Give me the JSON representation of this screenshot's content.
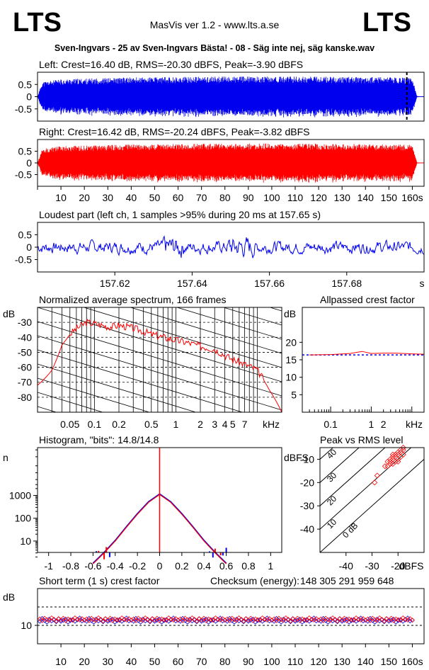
{
  "header": {
    "logo_left": "LTS",
    "logo_right": "LTS",
    "app_title": "MasVis ver 1.2 - www.lts.a.se",
    "file_title": "Sven-Ingvars - 25 av Sven-Ingvars Bästa! - 08 - Säg inte nej, säg kanske.wav"
  },
  "colors": {
    "left": "#0000ee",
    "right": "#ff0000",
    "grid": "#000000",
    "background": "#ffffff"
  },
  "chart_data": [
    {
      "id": "left_waveform",
      "type": "area",
      "title": "Left: Crest=16.40 dB, RMS=-20.30 dBFS, Peak=-3.90 dBFS",
      "xlim": [
        0,
        165
      ],
      "ylim": [
        -1,
        1
      ],
      "yticks": [
        "0.5",
        "0",
        "-0.5"
      ],
      "marker_x": 157.65,
      "envelope": {
        "x": [
          0,
          2,
          10,
          40,
          80,
          120,
          150,
          160,
          162,
          165
        ],
        "amplitude": [
          0.0,
          0.55,
          0.65,
          0.72,
          0.75,
          0.75,
          0.72,
          0.7,
          0.02,
          0.0
        ]
      }
    },
    {
      "id": "right_waveform",
      "type": "area",
      "title": "Right: Crest=16.42 dB, RMS=-20.24 dBFS, Peak=-3.82 dBFS",
      "xlim": [
        0,
        165
      ],
      "ylim": [
        -1,
        1
      ],
      "yticks": [
        "0.5",
        "0",
        "-0.5"
      ],
      "xticks": [
        "10",
        "20",
        "30",
        "40",
        "50",
        "60",
        "70",
        "80",
        "90",
        "100",
        "110",
        "120",
        "130",
        "140",
        "150",
        "160s"
      ],
      "envelope": {
        "x": [
          0,
          2,
          10,
          40,
          80,
          120,
          150,
          160,
          162,
          165
        ],
        "amplitude": [
          0.0,
          0.55,
          0.65,
          0.72,
          0.75,
          0.75,
          0.72,
          0.7,
          0.02,
          0.0
        ]
      }
    },
    {
      "id": "loudest_part",
      "type": "line",
      "title": "Loudest part (left  ch, 1 samples >95% during 20 ms at 157.65 s)",
      "xlim": [
        157.6,
        157.7
      ],
      "ylim": [
        -1,
        1
      ],
      "yticks": [
        "0.5",
        "0",
        "-0.5"
      ],
      "xticks": [
        157.62,
        157.64,
        157.66,
        157.68
      ],
      "xtick_labels": [
        "157.62",
        "157.64",
        "157.66",
        "157.68"
      ],
      "xunit": "s"
    },
    {
      "id": "avg_spectrum",
      "type": "line",
      "title": "Normalized average spectrum, 166 frames",
      "ylabel": "dB",
      "xunit": "kHz",
      "ylim": [
        -90,
        -20
      ],
      "yticks": [
        "-30",
        "-40",
        "-50",
        "-60",
        "-70",
        "-80"
      ],
      "xticks": [
        "0.05",
        "0.1",
        "0.2",
        "0.5",
        "1",
        "2",
        "3",
        "4",
        "5",
        "7"
      ],
      "series": [
        {
          "x_khz": [
            0.02,
            0.03,
            0.04,
            0.05,
            0.06,
            0.08,
            0.1,
            0.15,
            0.2,
            0.3,
            0.5,
            0.7,
            1,
            1.5,
            2,
            3,
            4,
            5,
            7,
            10,
            14,
            20
          ],
          "y_db": [
            -72,
            -62,
            -45,
            -38,
            -34,
            -30,
            -31,
            -33,
            -32,
            -34,
            -38,
            -40,
            -42,
            -44,
            -46,
            -48,
            -52,
            -55,
            -58,
            -62,
            -75,
            -90
          ]
        }
      ]
    },
    {
      "id": "allpassed_crest",
      "type": "line",
      "title": "Allpassed crest factor",
      "ylabel": "dB",
      "xunit": "kHz",
      "ylim": [
        0,
        30
      ],
      "yticks": [
        "20",
        "15",
        "10",
        "5"
      ],
      "xticks": [
        "0.1",
        "1",
        "2"
      ],
      "series": [
        {
          "x_khz": [
            0.03,
            0.1,
            0.3,
            0.6,
            1,
            2,
            4,
            10,
            20
          ],
          "y_db": [
            16.4,
            16.5,
            16.8,
            17.4,
            16.8,
            16.9,
            16.9,
            16.7,
            16.6
          ]
        }
      ],
      "reference_db": 16.4
    },
    {
      "id": "histogram",
      "type": "line",
      "title": "Histogram, \"bits\": 14.8/14.8",
      "ylabel": "n",
      "ylog": true,
      "xlim": [
        -1.1,
        1.1
      ],
      "yticks": [
        "1000",
        "100",
        "10"
      ],
      "xticks": [
        "-1",
        "-0.8",
        "-0.6",
        "-0.4",
        "-0.2",
        "0",
        "0.2",
        "0.4",
        "0.6",
        "0.8",
        "1"
      ],
      "series": [
        {
          "x": [
            -0.6,
            -0.5,
            -0.4,
            -0.3,
            -0.2,
            -0.1,
            0,
            0.1,
            0.2,
            0.3,
            0.4,
            0.5,
            0.6
          ],
          "y": [
            1,
            3,
            10,
            40,
            150,
            500,
            1100,
            500,
            150,
            40,
            10,
            3,
            1
          ]
        }
      ],
      "center_spike": 1000000
    },
    {
      "id": "peak_vs_rms",
      "type": "scatter",
      "title": "Peak vs RMS level",
      "ylabel": "dBFS",
      "xunit": "dBFS",
      "xlim": [
        -50,
        -10
      ],
      "ylim": [
        -50,
        -5
      ],
      "xticks": [
        "-40",
        "-30",
        "-20"
      ],
      "yticks": [
        "-10",
        "-20",
        "-30",
        "-40"
      ],
      "diagonal_labels": [
        "40",
        "30",
        "20",
        "10",
        "0 dB"
      ],
      "points": [
        [
          -28,
          -17
        ],
        [
          -29,
          -20
        ],
        [
          -25,
          -13
        ],
        [
          -24,
          -11
        ],
        [
          -23,
          -10
        ],
        [
          -22,
          -9
        ],
        [
          -21,
          -8
        ],
        [
          -20,
          -7
        ],
        [
          -19,
          -6
        ],
        [
          -18,
          -5
        ],
        [
          -22,
          -12
        ],
        [
          -21,
          -11
        ],
        [
          -20,
          -10
        ],
        [
          -19,
          -9
        ],
        [
          -18,
          -8
        ],
        [
          -23,
          -12
        ],
        [
          -24,
          -13
        ],
        [
          -20,
          -8
        ],
        [
          -19,
          -7
        ],
        [
          -22,
          -10
        ],
        [
          -21,
          -9
        ],
        [
          -18,
          -6
        ],
        [
          -20,
          -11
        ],
        [
          -23,
          -11
        ],
        [
          -22,
          -8
        ]
      ]
    },
    {
      "id": "short_term_crest",
      "type": "scatter",
      "title": "Short term (1 s) crest factor",
      "checksum_label": "Checksum (energy):",
      "checksum_value": "148 305 291 959 648",
      "ylabel": "dB",
      "xlim": [
        0,
        165
      ],
      "ylim": [
        5,
        20
      ],
      "yticks": [
        "10"
      ],
      "xticks": [
        "10",
        "20",
        "30",
        "40",
        "50",
        "60",
        "70",
        "80",
        "90",
        "100",
        "110",
        "120",
        "130",
        "140",
        "150",
        "160s"
      ],
      "dashed_levels": [
        10,
        15
      ],
      "series": [
        {
          "name": "left",
          "y": [
            11.5,
            11.2,
            12.0,
            11.4,
            11.0,
            11.8,
            11.3,
            11.6,
            11.1,
            11.9,
            11.2,
            11.5,
            11.8,
            11.0,
            11.4,
            11.7,
            11.2,
            11.6,
            12.1,
            11.3
          ]
        },
        {
          "name": "right",
          "y": [
            11.3,
            11.6,
            11.1,
            11.8,
            11.4,
            11.2,
            11.9,
            11.5,
            11.0,
            11.7,
            11.3,
            11.8,
            11.1,
            11.6,
            11.4,
            11.2,
            11.9,
            11.5,
            11.3,
            11.7
          ]
        }
      ]
    }
  ]
}
